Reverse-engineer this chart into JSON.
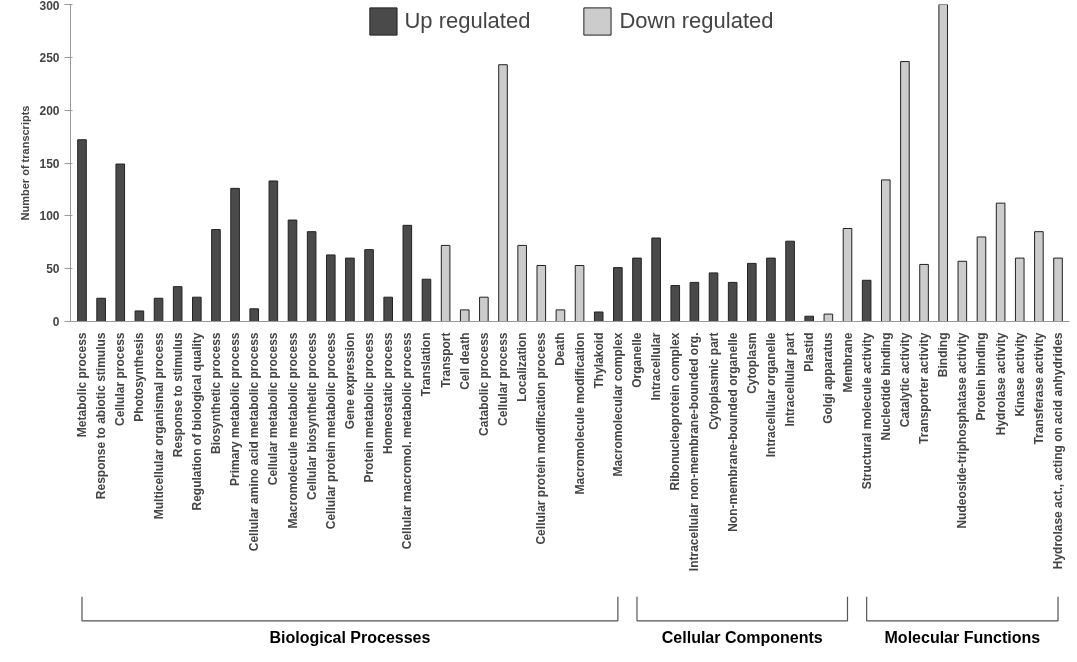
{
  "chart_data": {
    "type": "bar",
    "ylabel": "Number of transcripts",
    "categories": [
      "Metabolic process",
      "Response to abiotic stimulus",
      "Cellular process",
      "Photosynthesis",
      "Multicellular organismal process",
      "Response to stimulus",
      "Regulation of biological quality",
      "Biosynthetic process",
      "Primary metabolic process",
      "Cellular amino acid metabolic process",
      "Cellular metabolic process",
      "Macromolecule metabolic process",
      "Cellular biosynthetic process",
      "Cellular protein metabolic process",
      "Gene expression",
      "Protein metabolic process",
      "Homeostatic process",
      "Cellular macromol. metabolic process",
      "Translation",
      "Transport",
      "Cell death",
      "Catabolic process",
      "Cellular process",
      "Localization",
      "Cellular protein modification process",
      "Death",
      "Macromolecule modification",
      "Thylakoid",
      "Macromolecular complex",
      "Organelle",
      "Intracellular",
      "Ribonucleoprotein complex",
      "Intracellular non-membrane-bounded org.",
      "Cytoplasmic part",
      "Non-membrane-bounded organelle",
      "Cytoplasm",
      "Intracellular organelle",
      "Intracellular part",
      "Plastid",
      "Golgi apparatus",
      "Membrane",
      "Structural molecule activity",
      "Nucleotide binding",
      "Catalytic activity",
      "Transporter activity",
      "Binding",
      "Nudeoside-triphosphatase activity",
      "Protein binding",
      "Hydrolase activity",
      "Kinase activity",
      "Transferase activity",
      "Hydrolase act., acting on acid anhydrides"
    ],
    "series": [
      {
        "name": "Up regulated",
        "color": "#4a4a4a",
        "values": [
          172,
          22,
          149,
          10,
          22,
          33,
          23,
          87,
          126,
          12,
          133,
          96,
          85,
          63,
          60,
          68,
          23,
          91,
          40,
          null,
          null,
          null,
          null,
          null,
          null,
          null,
          null,
          9,
          51,
          60,
          79,
          34,
          37,
          46,
          37,
          55,
          60,
          76,
          5,
          null,
          null,
          39,
          null,
          null,
          null,
          null,
          null,
          null,
          null,
          null,
          null,
          null
        ]
      },
      {
        "name": "Down regulated",
        "color": "#cccccc",
        "values": [
          null,
          null,
          null,
          null,
          null,
          null,
          null,
          null,
          null,
          null,
          null,
          null,
          null,
          null,
          null,
          null,
          null,
          null,
          null,
          72,
          11,
          23,
          243,
          72,
          53,
          11,
          53,
          null,
          null,
          null,
          null,
          null,
          null,
          null,
          null,
          null,
          null,
          null,
          null,
          7,
          88,
          null,
          134,
          246,
          54,
          300,
          57,
          80,
          112,
          60,
          85,
          60
        ]
      }
    ],
    "ylim": [
      0,
      300
    ],
    "yticks": [
      0,
      50,
      100,
      150,
      200,
      250,
      300
    ],
    "grid": false,
    "legend": "top",
    "annotations": [
      "Biological Processes",
      "Cellular Components",
      "Molecular Functions"
    ]
  }
}
